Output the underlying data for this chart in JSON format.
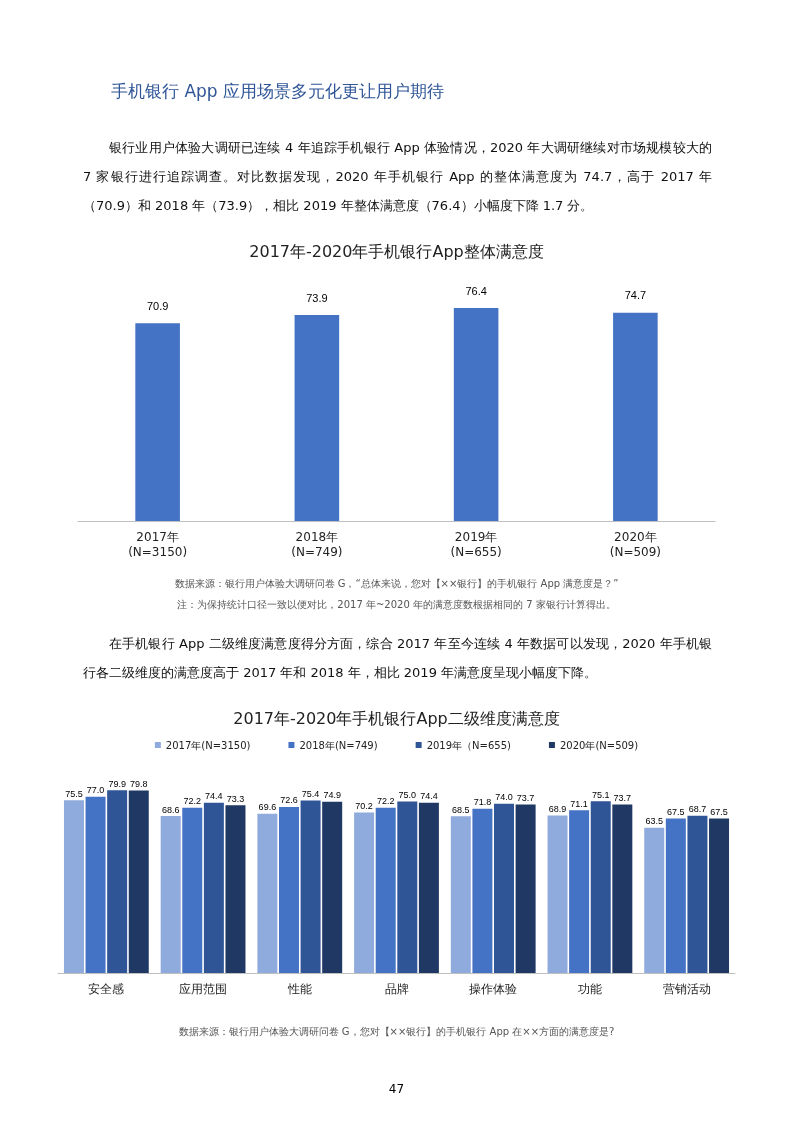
{
  "chart_data": [
    {
      "type": "bar",
      "title": "2017年-2020年手机银行App整体满意度",
      "categories": [
        "2017年\n(N=3150)",
        "2018年\n(N=749)",
        "2019年\n(N=655)",
        "2020年\n(N=509)"
      ],
      "values": [
        70.9,
        73.9,
        76.4,
        74.7
      ],
      "color": "#4472c4",
      "data_labels": true,
      "legend": false,
      "annotations": [
        "手机银行 App 应用场景多元化更让用户期待",
        "银行业用户体验大调研已连续 4 年追踪手机银行 App 体验情况，2020 年大调研继续对市场规模较大的 7 家银行进行追踪调查。对比数据发现，2020 年手机银行 App 的整体满意度为 74.7，高于 2017 年（70.9）和 2018 年（73.9），相比 2019 年整体满意度（76.4）小幅度下降 1.7 分。",
        "数据来源：银行用户体验大调研问卷 G，“总体来说，您对【××银行】的手机银行 App 满意度是？”",
        "注：为保持统计口径一致以便对比，2017 年~2020 年的满意度数根据相同的 7 家银行计算得出。"
      ]
    },
    {
      "type": "bar",
      "title": "2017年-2020年手机银行App二级维度满意度",
      "categories": [
        "安全感",
        "应用范围",
        "性能",
        "品牌",
        "操作体验",
        "功能",
        "营销活动"
      ],
      "series": [
        {
          "name": "2017年(N=3150)",
          "color": "#8faadc",
          "values": [
            75.5,
            68.6,
            69.6,
            70.2,
            68.5,
            68.9,
            63.5
          ],
          "value_labels": [
            "75.5",
            "68.6",
            "69.6",
            "70.2",
            "68.5",
            "68.9",
            "63.5"
          ]
        },
        {
          "name": "2018年(N=749)",
          "color": "#4472c4",
          "values": [
            77.0,
            72.2,
            72.6,
            72.2,
            71.8,
            71.1,
            67.5
          ],
          "value_labels": [
            "77.0",
            "72.2",
            "72.6",
            "72.2",
            "71.8",
            "71.1",
            "67.5"
          ]
        },
        {
          "name": "2019年（N=655)",
          "color": "#2f5597",
          "values": [
            79.9,
            74.4,
            75.4,
            75.0,
            74.0,
            75.1,
            68.7
          ],
          "value_labels": [
            "79.9",
            "74.4",
            "75.4",
            "75.0",
            "74.0",
            "75.1",
            "68.7"
          ]
        },
        {
          "name": "2020年(N=509)",
          "color": "#203864",
          "values": [
            79.8,
            73.3,
            74.9,
            74.4,
            73.7,
            73.7,
            67.5
          ],
          "value_labels": [
            "79.8",
            "73.3",
            "74.9",
            "74.4",
            "73.7",
            "73.7",
            "67.5"
          ]
        }
      ],
      "legend": "top",
      "annotations": [
        "在手机银行 App 二级维度满意度得分方面，综合 2017 年至今连续 4 年数据可以发现，2020 年手机银行各二级维度的满意度高于 2017 年和 2018 年，相比 2019 年满意度呈现小幅度下降。",
        "数据来源：银行用户体验大调研问卷 G，您对【××银行】的手机银行 App 在××方面的满意度是?",
        "47"
      ]
    }
  ]
}
